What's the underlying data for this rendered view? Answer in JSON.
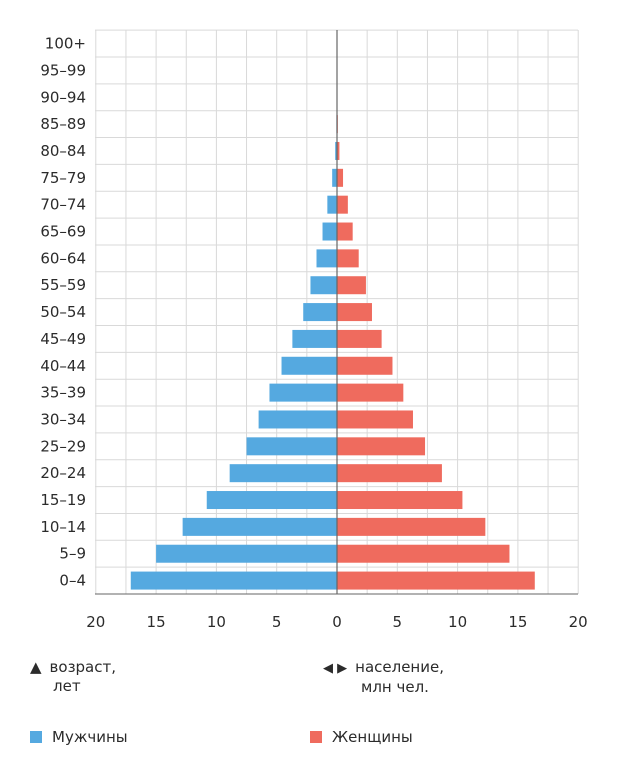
{
  "colors": {
    "male": "#55a9e0",
    "female": "#ef6b5e",
    "grid": "#d9d9d9",
    "axis": "#666666"
  },
  "notes": {
    "age_icon": "▲",
    "age_line1": "возраст,",
    "age_line2": "лет",
    "pop_icon": "◀ ▶",
    "pop_line1": "население,",
    "pop_line2": "млн чел."
  },
  "legend": {
    "male": "Мужчины",
    "female": "Женщины"
  },
  "chart_data": {
    "type": "bar",
    "orientation": "horizontal-population-pyramid",
    "categories": [
      "0–4",
      "5–9",
      "10–14",
      "15–19",
      "20–24",
      "25–29",
      "30–34",
      "35–39",
      "40–44",
      "45–49",
      "50–54",
      "55–59",
      "60–64",
      "65–69",
      "70–74",
      "75–79",
      "80–84",
      "85–89",
      "90–94",
      "95–99",
      "100+"
    ],
    "series": [
      {
        "name": "Мужчины",
        "values": [
          17.1,
          15.0,
          12.8,
          10.8,
          8.9,
          7.5,
          6.5,
          5.6,
          4.6,
          3.7,
          2.8,
          2.2,
          1.7,
          1.2,
          0.8,
          0.4,
          0.15,
          0.05,
          0.02,
          0.01,
          0
        ]
      },
      {
        "name": "Женщины",
        "values": [
          16.4,
          14.3,
          12.3,
          10.4,
          8.7,
          7.3,
          6.3,
          5.5,
          4.6,
          3.7,
          2.9,
          2.4,
          1.8,
          1.3,
          0.9,
          0.5,
          0.2,
          0.07,
          0.03,
          0.01,
          0
        ]
      }
    ],
    "xticks": [
      "20",
      "15",
      "10",
      "5",
      "0",
      "5",
      "10",
      "15",
      "20"
    ],
    "xlim": [
      -20,
      20
    ],
    "grid": true
  }
}
